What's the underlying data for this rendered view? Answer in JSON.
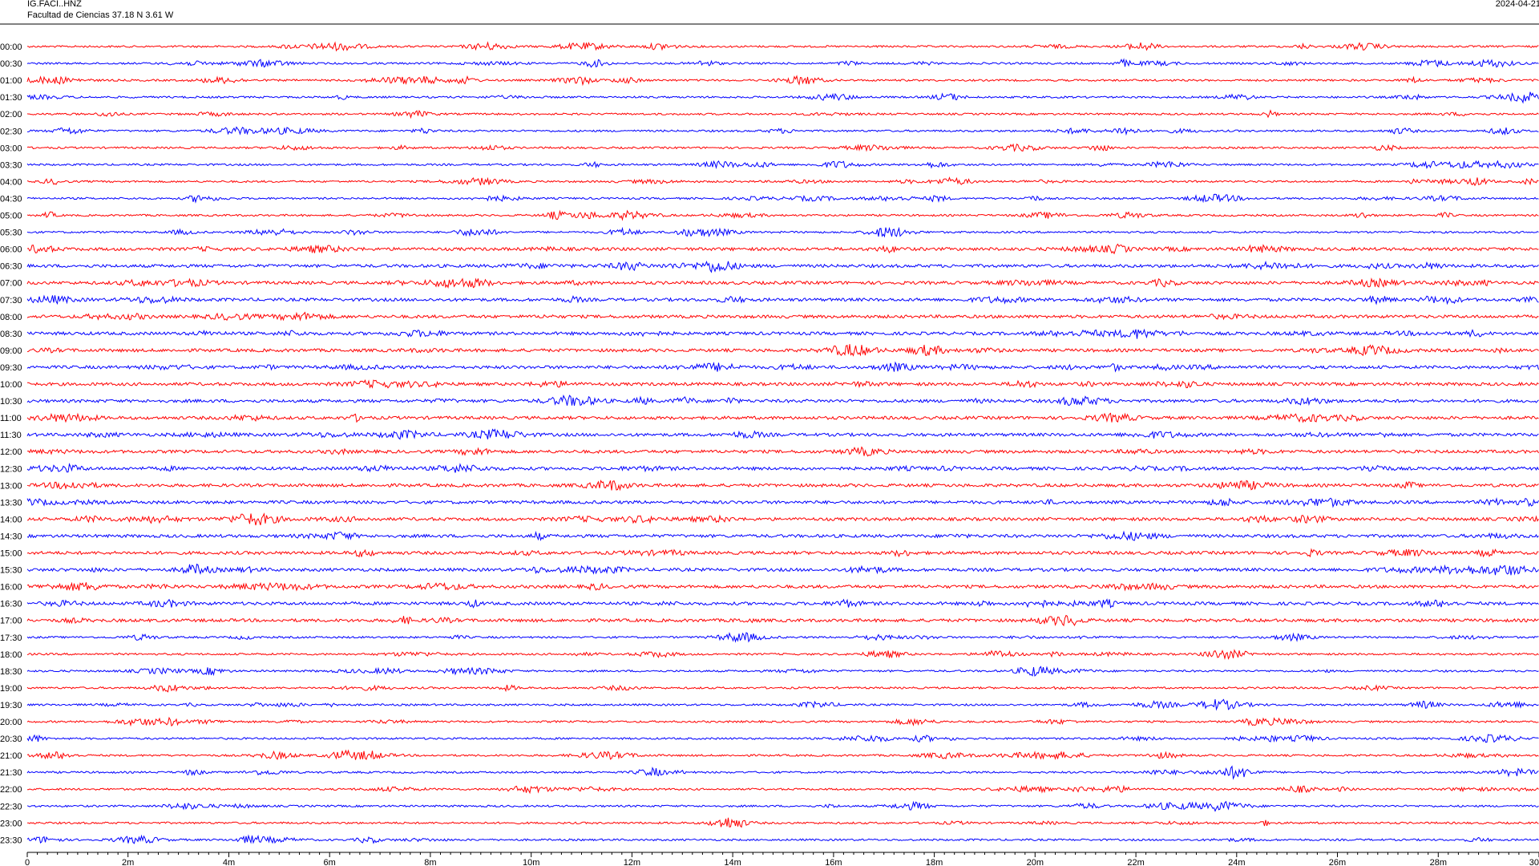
{
  "header": {
    "station": "IG.FACI..HNZ",
    "location": "Facultad de Ciencias  37.18 N 3.61 W",
    "date": "2024-04-21"
  },
  "chart_data": {
    "type": "line",
    "title": "",
    "xlabel": "",
    "ylabel": "",
    "xlim": [
      0,
      30
    ],
    "x_ticks": [
      "0",
      "2m",
      "4m",
      "6m",
      "8m",
      "10m",
      "12m",
      "14m",
      "16m",
      "18m",
      "20m",
      "22m",
      "24m",
      "26m",
      "28m",
      "30"
    ],
    "row_labels": [
      "00:00",
      "00:30",
      "01:00",
      "01:30",
      "02:00",
      "02:30",
      "03:00",
      "03:30",
      "04:00",
      "04:30",
      "05:00",
      "05:30",
      "06:00",
      "06:30",
      "07:00",
      "07:30",
      "08:00",
      "08:30",
      "09:00",
      "09:30",
      "10:00",
      "10:30",
      "11:00",
      "11:30",
      "12:00",
      "12:30",
      "13:00",
      "13:30",
      "14:00",
      "14:30",
      "15:00",
      "15:30",
      "16:00",
      "16:30",
      "17:00",
      "17:30",
      "18:00",
      "18:30",
      "19:00",
      "19:30",
      "20:00",
      "20:30",
      "21:00",
      "21:30",
      "22:00",
      "22:30",
      "23:00",
      "23:30"
    ],
    "colors": [
      "#ff0000",
      "#0000ff"
    ],
    "grid": false,
    "legend": "none"
  }
}
